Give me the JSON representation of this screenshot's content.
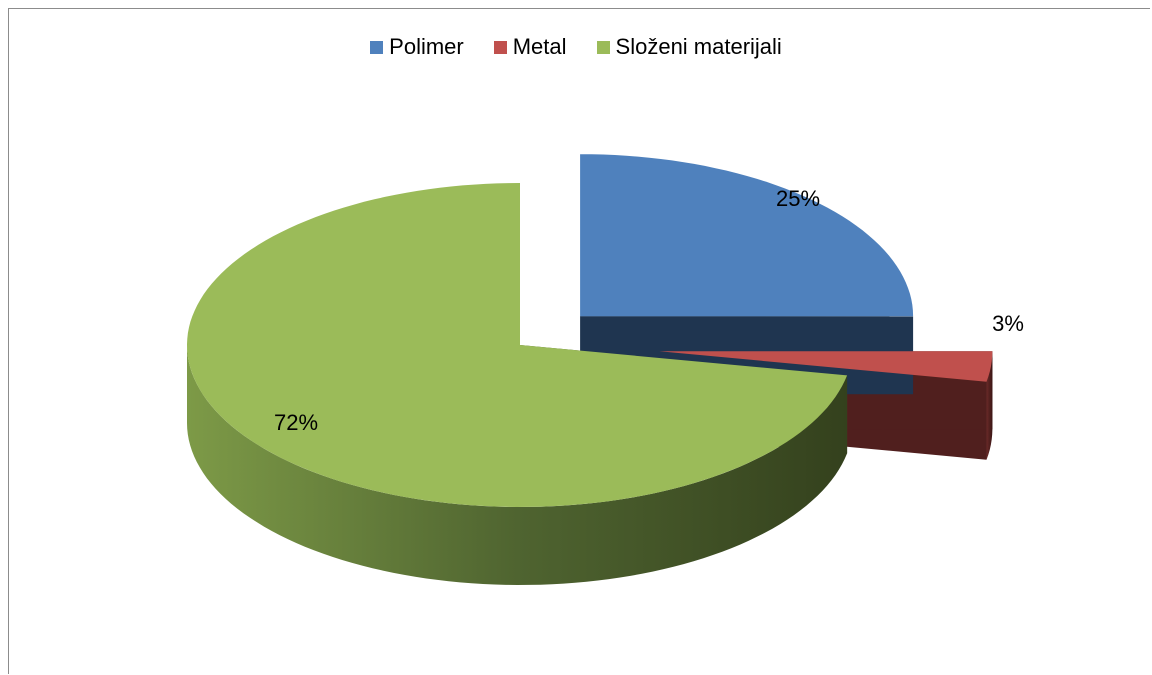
{
  "chart_data": {
    "type": "pie",
    "title": "",
    "categories": [
      "Polimer",
      "Metal",
      "Složeni materijali"
    ],
    "values": [
      25,
      3,
      72
    ],
    "data_labels": [
      "25%",
      "3%",
      "72%"
    ],
    "colors": [
      "#4f81bd",
      "#c0504d",
      "#9bbb59"
    ],
    "side_colors": [
      "#1f3550",
      "#501f1e",
      "#3f4d24"
    ],
    "legend_placement": "top",
    "exploded": true,
    "three_d": true
  }
}
